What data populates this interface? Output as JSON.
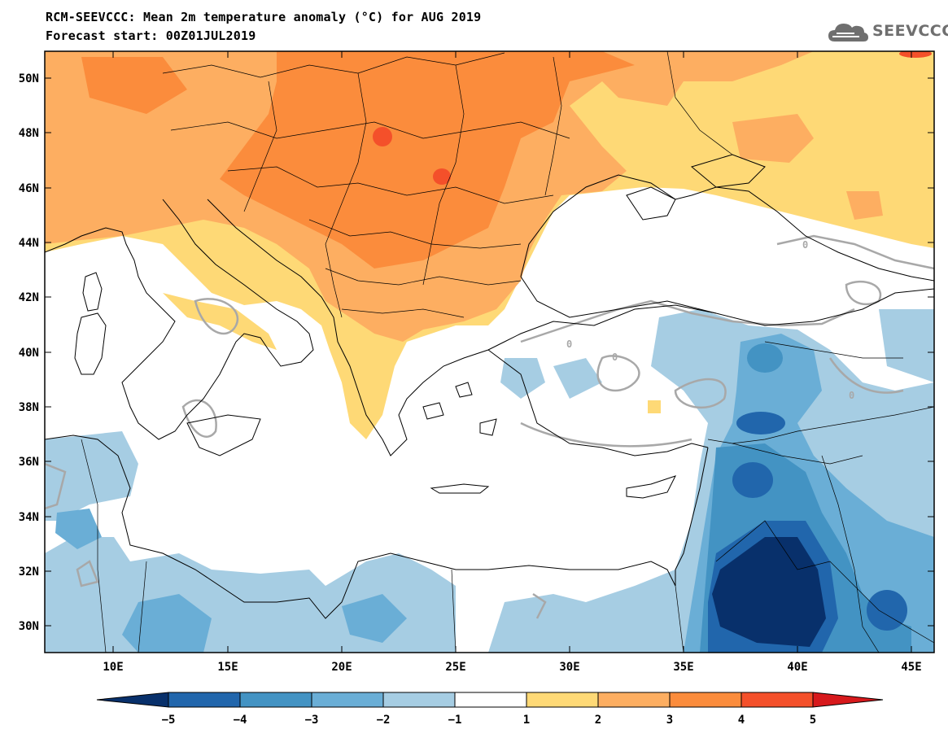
{
  "header": {
    "title_line1": "RCM-SEEVCCC: Mean 2m temperature anomaly (°C) for AUG 2019",
    "title_line2": "Forecast start: 00Z01JUL2019",
    "logo_text": "SEEVCCC"
  },
  "map": {
    "lon_range": [
      7,
      46
    ],
    "lat_range": [
      29,
      51
    ],
    "y_ticks": [
      "50N",
      "48N",
      "46N",
      "44N",
      "42N",
      "40N",
      "38N",
      "36N",
      "34N",
      "32N",
      "30N"
    ],
    "x_ticks": [
      "10E",
      "15E",
      "20E",
      "25E",
      "30E",
      "35E",
      "40E",
      "45E"
    ],
    "contour_label": "0"
  },
  "colorbar": {
    "labels": [
      "−5",
      "−4",
      "−3",
      "−2",
      "−1",
      "1",
      "2",
      "3",
      "4",
      "5"
    ],
    "colors": [
      "#08306b",
      "#2166ac",
      "#4393c3",
      "#6aaed6",
      "#a6cde3",
      "#ffffff",
      "#fed976",
      "#fdae61",
      "#fb8c3c",
      "#f4502a",
      "#d7191c"
    ]
  }
}
